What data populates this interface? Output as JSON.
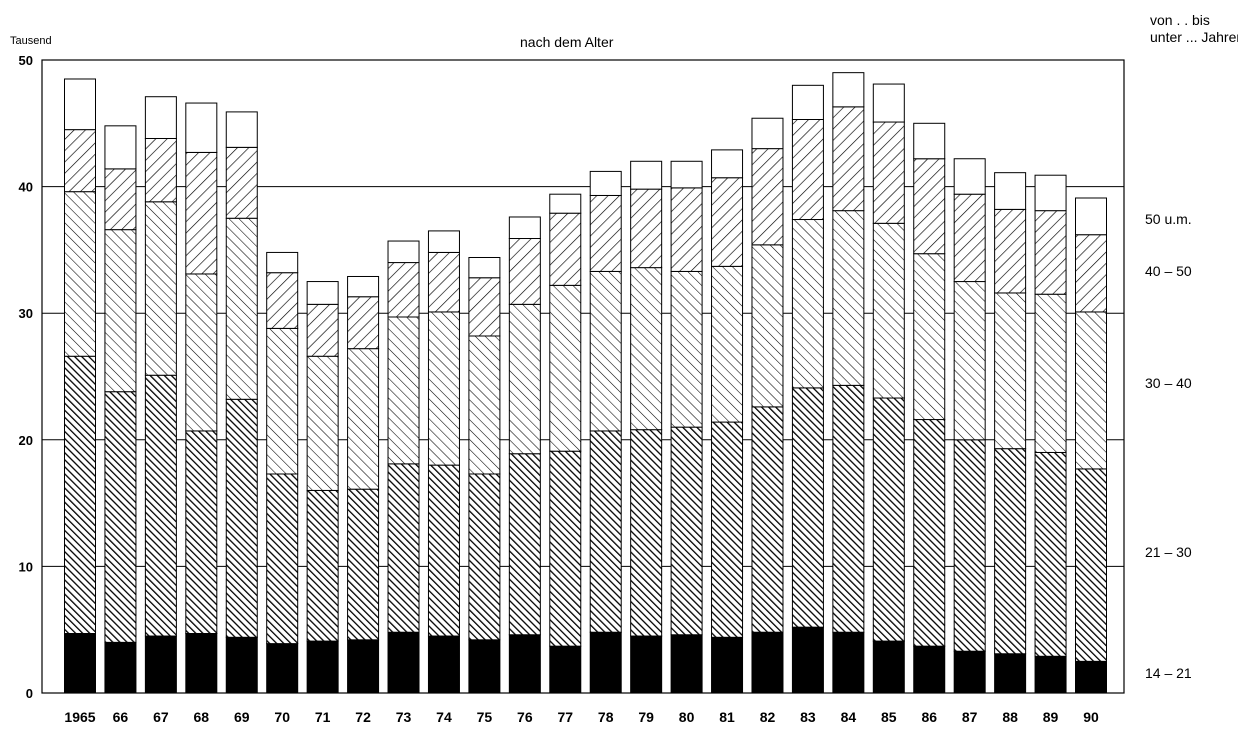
{
  "chart_data": {
    "type": "bar",
    "stacked": true,
    "title": "nach dem Alter",
    "ylabel": "Tausend",
    "legend_title": [
      "von . . bis",
      "unter ... Jahren"
    ],
    "ylim": [
      0,
      50
    ],
    "yticks": [
      "0",
      "10",
      "20",
      "30",
      "40",
      "50"
    ],
    "categories": [
      "1965",
      "66",
      "67",
      "68",
      "69",
      "70",
      "71",
      "72",
      "73",
      "74",
      "75",
      "76",
      "77",
      "78",
      "79",
      "80",
      "81",
      "82",
      "83",
      "84",
      "85",
      "86",
      "87",
      "88",
      "89",
      "90"
    ],
    "series": [
      {
        "name": "14 – 21",
        "values": [
          4.7,
          4.0,
          4.5,
          4.7,
          4.4,
          3.9,
          4.1,
          4.2,
          4.8,
          4.5,
          4.2,
          4.6,
          3.7,
          4.8,
          4.5,
          4.6,
          4.4,
          4.8,
          5.2,
          4.8,
          4.1,
          3.7,
          3.3,
          3.1,
          2.9,
          2.5
        ]
      },
      {
        "name": "21 – 30",
        "values": [
          21.9,
          19.8,
          20.6,
          16.0,
          18.8,
          13.4,
          11.9,
          11.9,
          13.3,
          13.5,
          13.1,
          14.3,
          15.4,
          15.9,
          16.3,
          16.4,
          17.0,
          17.8,
          18.9,
          19.5,
          19.2,
          17.9,
          16.7,
          16.2,
          16.1,
          15.2
        ]
      },
      {
        "name": "30 – 40",
        "values": [
          13.0,
          12.8,
          13.7,
          12.4,
          14.3,
          11.5,
          10.6,
          11.1,
          11.6,
          12.1,
          10.9,
          11.8,
          13.1,
          12.6,
          12.8,
          12.3,
          12.3,
          12.8,
          13.3,
          13.8,
          13.8,
          13.1,
          12.5,
          12.3,
          12.5,
          12.4
        ]
      },
      {
        "name": "40 – 50",
        "values": [
          4.9,
          4.8,
          5.0,
          9.6,
          5.6,
          4.4,
          4.1,
          4.1,
          4.3,
          4.7,
          4.6,
          5.2,
          5.7,
          6.0,
          6.2,
          6.6,
          7.0,
          7.6,
          7.9,
          8.2,
          8.0,
          7.5,
          6.9,
          6.6,
          6.6,
          6.1
        ]
      },
      {
        "name": "50 u.m.",
        "values": [
          4.0,
          3.4,
          3.3,
          3.9,
          2.8,
          1.6,
          1.8,
          1.6,
          1.7,
          1.7,
          1.6,
          1.7,
          1.5,
          1.9,
          2.2,
          2.1,
          2.2,
          2.4,
          2.7,
          2.7,
          3.0,
          2.8,
          2.8,
          2.9,
          2.8,
          2.9
        ]
      }
    ],
    "grid": "horizontal lines at 10, 20, 30, 40, 50",
    "legend_placement": "right"
  }
}
